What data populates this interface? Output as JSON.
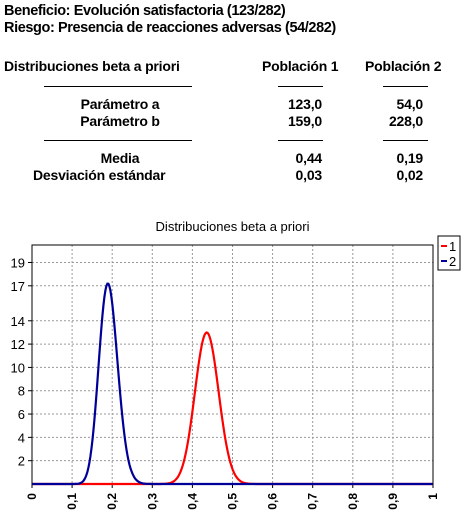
{
  "header": {
    "benefit": "Beneficio: Evolución satisfactoria (123/282)",
    "risk": "Riesgo: Presencia de reacciones adversas (54/282)"
  },
  "table": {
    "title": "Distribuciones beta a priori",
    "col1": "Población 1",
    "col2": "Población 2",
    "rows": [
      {
        "label": "Parámetro a",
        "v1": "123,0",
        "v2": "54,0"
      },
      {
        "label": "Parámetro b",
        "v1": "159,0",
        "v2": "228,0"
      },
      {
        "label": "Media",
        "v1": "0,44",
        "v2": "0,19"
      },
      {
        "label": "Desviación estándar",
        "v1": "0,03",
        "v2": "0,02"
      }
    ]
  },
  "colors": {
    "series1": "#ff0000",
    "series2": "#000099",
    "grid": "#9a9a9a",
    "axis": "#000000"
  },
  "chart_data": {
    "type": "line",
    "title": "Distribuciones beta a priori",
    "xlabel": "",
    "ylabel": "",
    "xlim": [
      0,
      1
    ],
    "ylim": [
      0,
      20.5
    ],
    "x_ticks": [
      "0",
      "0,1",
      "0,2",
      "0,3",
      "0,4",
      "0,5",
      "0,6",
      "0,7",
      "0,8",
      "0,9",
      "1"
    ],
    "y_ticks": [
      "2",
      "4",
      "6",
      "8",
      "10",
      "12",
      "14",
      "17",
      "19"
    ],
    "grid": true,
    "legend_position": "top-right",
    "series": [
      {
        "name": "1",
        "color": "#ff0000",
        "distribution": "beta",
        "a": 123,
        "b": 159,
        "peak": 13.0
      },
      {
        "name": "2",
        "color": "#000099",
        "distribution": "beta",
        "a": 54,
        "b": 228,
        "peak": 17.2
      }
    ]
  }
}
